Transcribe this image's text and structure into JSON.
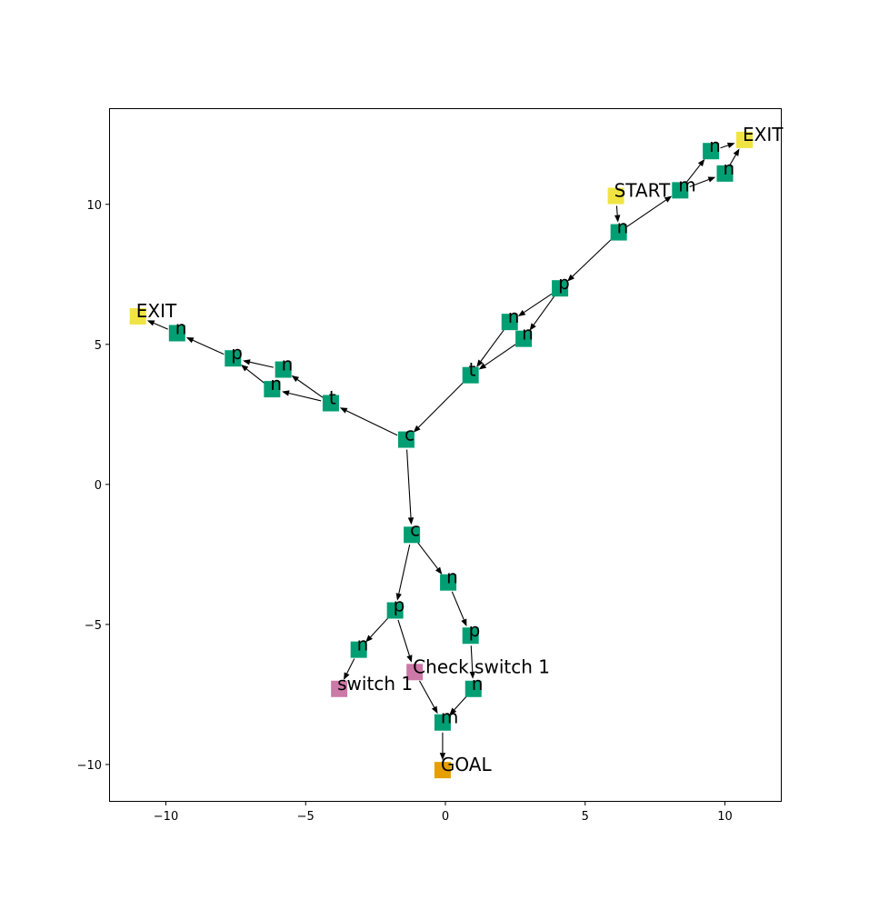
{
  "chart_data": {
    "type": "scatter",
    "xlim": [
      -12,
      12
    ],
    "ylim": [
      -11.3,
      13.4
    ],
    "x_ticks": [
      -10,
      -5,
      0,
      5,
      10
    ],
    "y_ticks": [
      -10,
      -5,
      0,
      5,
      10
    ],
    "x_tick_labels": [
      "−10",
      "−5",
      "0",
      "5",
      "10"
    ],
    "y_tick_labels": [
      "−10",
      "−5",
      "0",
      "5",
      "10"
    ],
    "grid": false,
    "colors": {
      "path": "#009e73",
      "terminal": "#f0e442",
      "switch": "#cc79a7",
      "goal": "#e69f00",
      "edge": "#000000"
    },
    "nodes": [
      {
        "id": "start",
        "label": "START",
        "x": 6.1,
        "y": 10.3,
        "kind": "terminal"
      },
      {
        "id": "a",
        "label": "n",
        "x": 6.2,
        "y": 9.0,
        "kind": "path"
      },
      {
        "id": "b",
        "label": "m",
        "x": 8.4,
        "y": 10.5,
        "kind": "path"
      },
      {
        "id": "c",
        "label": "n",
        "x": 9.5,
        "y": 11.9,
        "kind": "path"
      },
      {
        "id": "d",
        "label": "n",
        "x": 10.0,
        "y": 11.1,
        "kind": "path"
      },
      {
        "id": "exit_right",
        "label": "EXIT",
        "x": 10.7,
        "y": 12.3,
        "kind": "terminal"
      },
      {
        "id": "e",
        "label": "p",
        "x": 4.1,
        "y": 7.0,
        "kind": "path"
      },
      {
        "id": "f",
        "label": "n",
        "x": 2.3,
        "y": 5.8,
        "kind": "path"
      },
      {
        "id": "g",
        "label": "n",
        "x": 2.8,
        "y": 5.2,
        "kind": "path"
      },
      {
        "id": "h",
        "label": "t",
        "x": 0.9,
        "y": 3.9,
        "kind": "path"
      },
      {
        "id": "i",
        "label": "c",
        "x": -1.4,
        "y": 1.6,
        "kind": "path"
      },
      {
        "id": "j",
        "label": "t",
        "x": -4.1,
        "y": 2.9,
        "kind": "path"
      },
      {
        "id": "k",
        "label": "n",
        "x": -5.8,
        "y": 4.1,
        "kind": "path"
      },
      {
        "id": "l",
        "label": "n",
        "x": -6.2,
        "y": 3.4,
        "kind": "path"
      },
      {
        "id": "m",
        "label": "p",
        "x": -7.6,
        "y": 4.5,
        "kind": "path"
      },
      {
        "id": "o",
        "label": "n",
        "x": -9.6,
        "y": 5.4,
        "kind": "path"
      },
      {
        "id": "exit_left",
        "label": "EXIT",
        "x": -11.0,
        "y": 6.0,
        "kind": "terminal"
      },
      {
        "id": "q",
        "label": "c",
        "x": -1.2,
        "y": -1.8,
        "kind": "path"
      },
      {
        "id": "r",
        "label": "n",
        "x": 0.1,
        "y": -3.5,
        "kind": "path"
      },
      {
        "id": "s",
        "label": "p",
        "x": -1.8,
        "y": -4.5,
        "kind": "path"
      },
      {
        "id": "u",
        "label": "p",
        "x": 0.9,
        "y": -5.4,
        "kind": "path"
      },
      {
        "id": "v",
        "label": "n",
        "x": -3.1,
        "y": -5.9,
        "kind": "path"
      },
      {
        "id": "check",
        "label": "Check switch 1",
        "x": -1.1,
        "y": -6.7,
        "kind": "switch"
      },
      {
        "id": "switch",
        "label": "switch 1",
        "x": -3.8,
        "y": -7.3,
        "kind": "switch"
      },
      {
        "id": "w",
        "label": "n",
        "x": 1.0,
        "y": -7.3,
        "kind": "path"
      },
      {
        "id": "z",
        "label": "m",
        "x": -0.1,
        "y": -8.5,
        "kind": "path"
      },
      {
        "id": "goal",
        "label": "GOAL",
        "x": -0.1,
        "y": -10.2,
        "kind": "goal"
      }
    ],
    "edges": [
      [
        "start",
        "a"
      ],
      [
        "a",
        "b"
      ],
      [
        "b",
        "c"
      ],
      [
        "b",
        "d"
      ],
      [
        "c",
        "exit_right"
      ],
      [
        "d",
        "exit_right"
      ],
      [
        "a",
        "e"
      ],
      [
        "e",
        "f"
      ],
      [
        "e",
        "g"
      ],
      [
        "f",
        "h"
      ],
      [
        "g",
        "h"
      ],
      [
        "h",
        "i"
      ],
      [
        "i",
        "j"
      ],
      [
        "j",
        "k"
      ],
      [
        "j",
        "l"
      ],
      [
        "k",
        "m"
      ],
      [
        "l",
        "m"
      ],
      [
        "m",
        "o"
      ],
      [
        "o",
        "exit_left"
      ],
      [
        "i",
        "q"
      ],
      [
        "q",
        "r"
      ],
      [
        "q",
        "s"
      ],
      [
        "r",
        "u"
      ],
      [
        "u",
        "w"
      ],
      [
        "w",
        "z"
      ],
      [
        "s",
        "v"
      ],
      [
        "v",
        "switch"
      ],
      [
        "s",
        "check"
      ],
      [
        "check",
        "z"
      ],
      [
        "z",
        "goal"
      ]
    ]
  }
}
